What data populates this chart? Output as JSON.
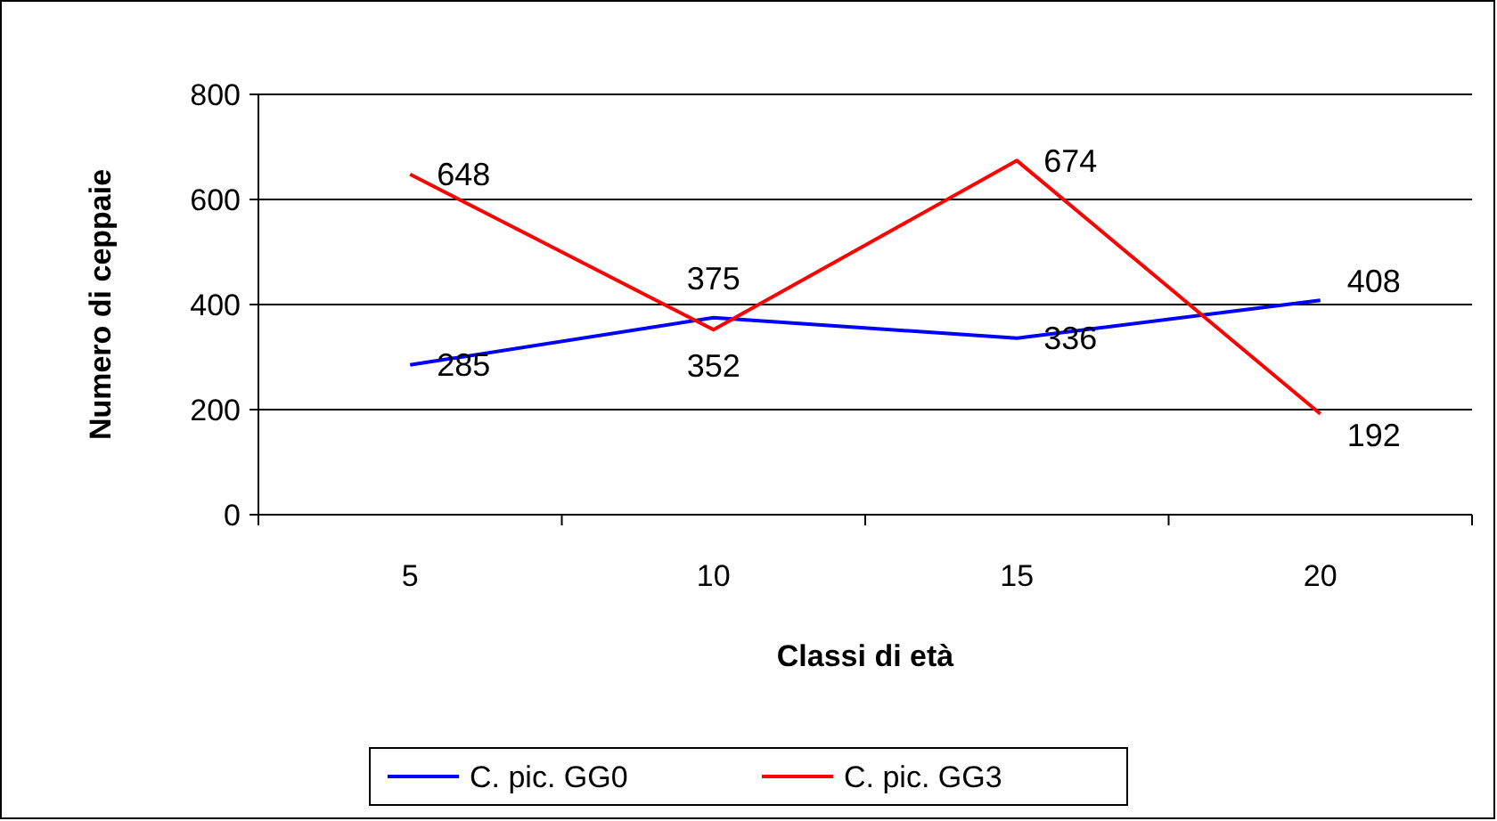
{
  "chart_data": {
    "type": "line",
    "xlabel": "Classi di età",
    "ylabel": "Numero di ceppaie",
    "categories": [
      "5",
      "10",
      "15",
      "20"
    ],
    "series": [
      {
        "name": "C. pic. GG0",
        "color": "#0000ff",
        "values": [
          285,
          375,
          336,
          408
        ]
      },
      {
        "name": "C. pic. GG3",
        "color": "#ff0000",
        "values": [
          648,
          352,
          674,
          192
        ]
      }
    ],
    "ylim": [
      0,
      800
    ],
    "yticks": [
      0,
      200,
      400,
      600,
      800
    ],
    "grid": "y",
    "legend": "bottom",
    "data_labels": true,
    "marker": "none",
    "line_style": "solid"
  }
}
